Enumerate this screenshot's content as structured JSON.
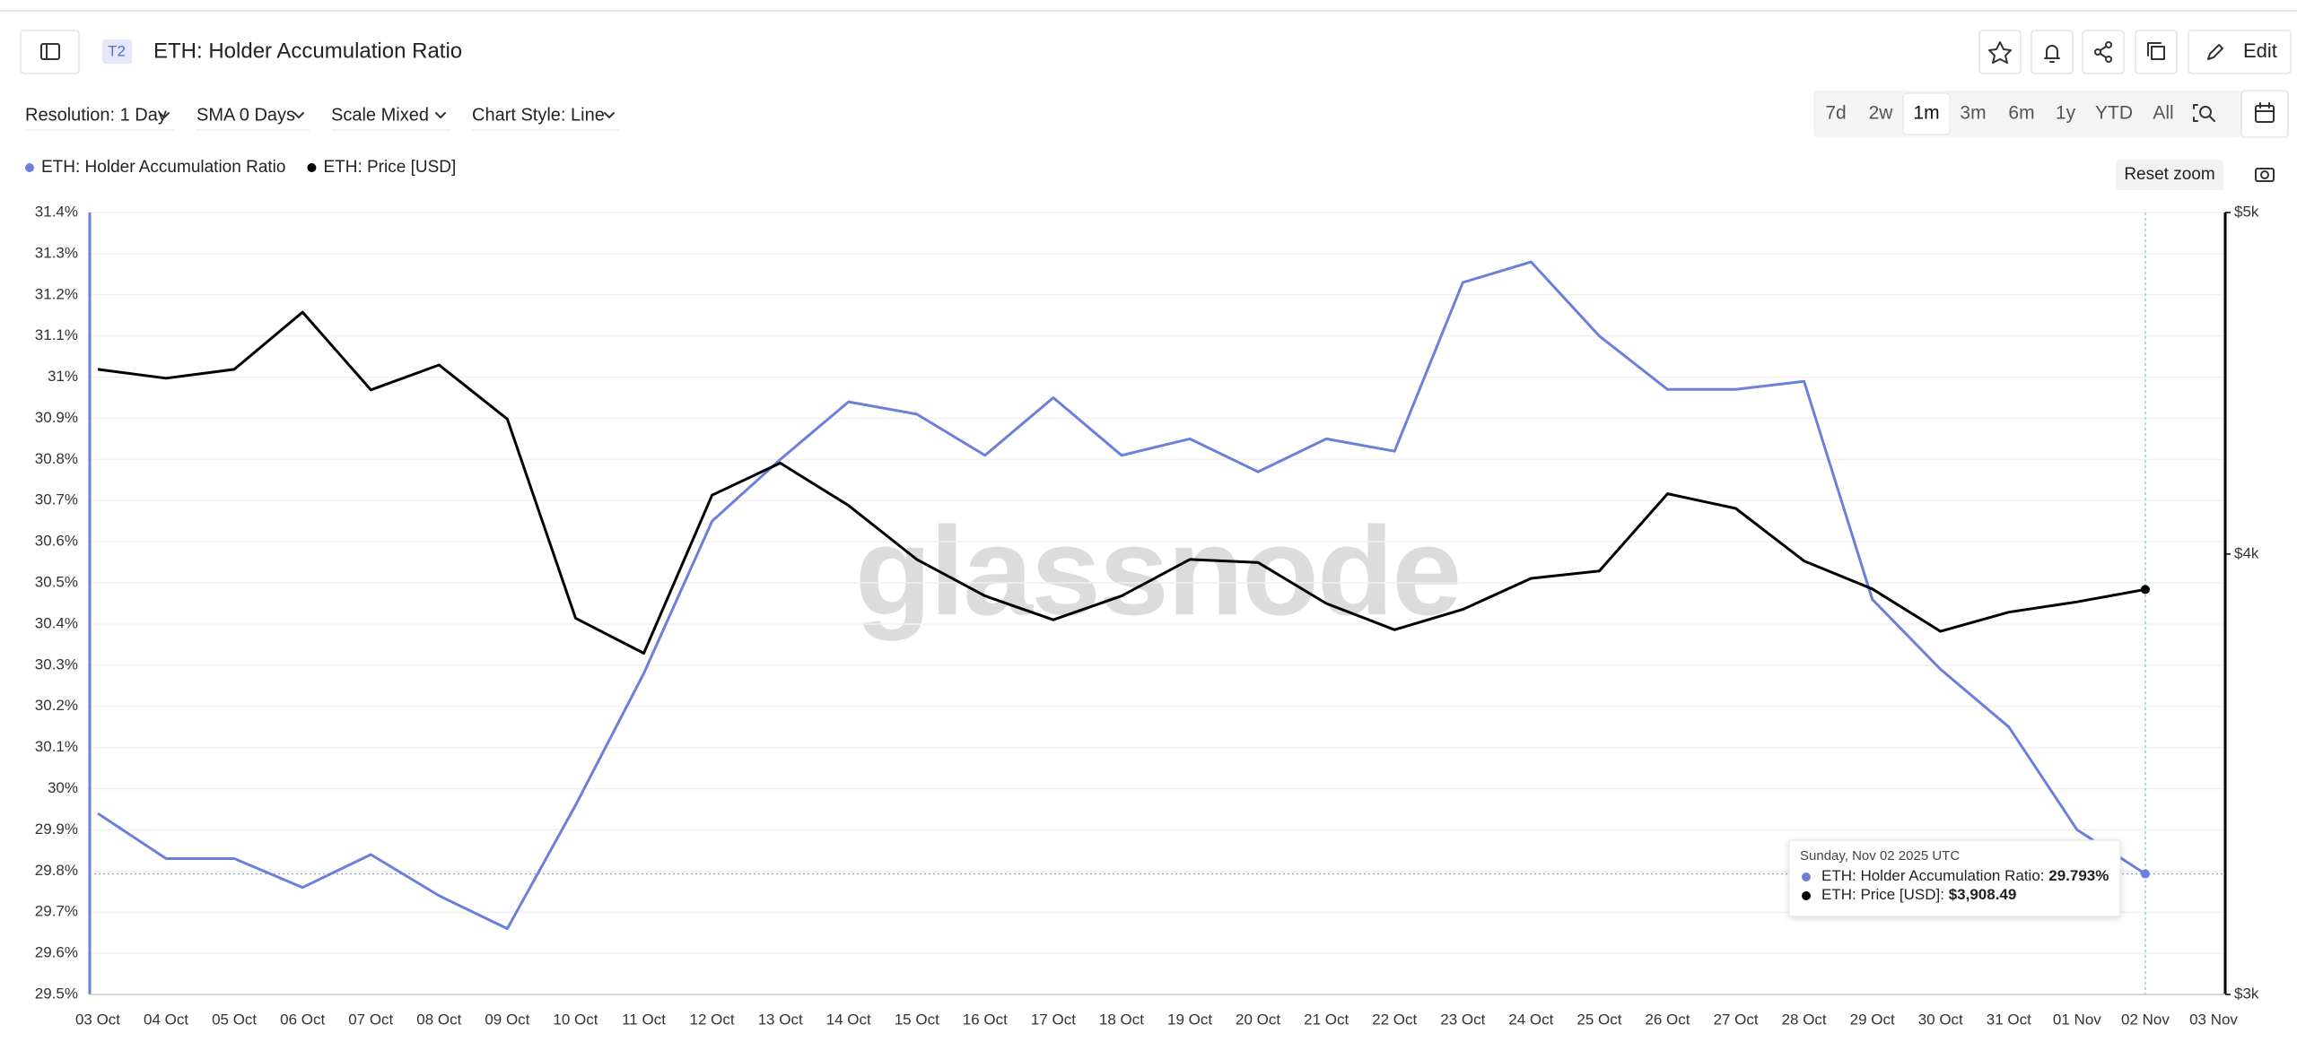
{
  "header": {
    "badge": "T2",
    "edit": "Edit"
  },
  "toolbar": {
    "resolution": "Resolution: 1 Day",
    "sma": "SMA 0 Days",
    "scale": "Scale Mixed",
    "chart_style": "Chart Style: Line",
    "ranges": [
      "7d",
      "2w",
      "1m",
      "3m",
      "6m",
      "1y",
      "YTD",
      "All"
    ],
    "reset_zoom": "Reset zoom"
  },
  "watermark": "glassnode",
  "chart_data": {
    "type": "line",
    "title": "ETH: Holder Accumulation Ratio",
    "categories": [
      "03 Oct",
      "04 Oct",
      "05 Oct",
      "06 Oct",
      "07 Oct",
      "08 Oct",
      "09 Oct",
      "10 Oct",
      "11 Oct",
      "12 Oct",
      "13 Oct",
      "14 Oct",
      "15 Oct",
      "16 Oct",
      "17 Oct",
      "18 Oct",
      "19 Oct",
      "20 Oct",
      "21 Oct",
      "22 Oct",
      "23 Oct",
      "24 Oct",
      "25 Oct",
      "26 Oct",
      "27 Oct",
      "28 Oct",
      "29 Oct",
      "30 Oct",
      "31 Oct",
      "01 Nov",
      "02 Nov",
      "03 Nov"
    ],
    "series": [
      {
        "name": "ETH: Holder Accumulation Ratio",
        "color": "#6b7fdb",
        "values": [
          29.94,
          29.83,
          29.83,
          29.76,
          29.84,
          29.74,
          29.66,
          29.96,
          30.28,
          30.65,
          30.8,
          30.94,
          30.91,
          30.81,
          30.95,
          30.81,
          30.85,
          30.77,
          30.85,
          30.82,
          31.23,
          31.28,
          31.1,
          30.97,
          30.97,
          30.99,
          30.46,
          30.29,
          30.15,
          29.9,
          29.793,
          null
        ]
      },
      {
        "name": "ETH: Price [USD]",
        "color": "#000000",
        "axis": "y2",
        "values": [
          4513,
          4487,
          4513,
          4685,
          4453,
          4526,
          4369,
          3836,
          3749,
          4157,
          4245,
          4129,
          3986,
          3892,
          3832,
          3892,
          3986,
          3978,
          3873,
          3807,
          3858,
          3937,
          3956,
          4161,
          4121,
          3982,
          3910,
          3803,
          3851,
          3877,
          3908.49,
          null
        ]
      }
    ],
    "ylim": [
      29.5,
      31.4
    ],
    "yticks": [
      {
        "value": 29.5,
        "label": "29.5%"
      },
      {
        "value": 29.6,
        "label": "29.6%"
      },
      {
        "value": 29.7,
        "label": "29.7%"
      },
      {
        "value": 29.8,
        "label": "29.8%"
      },
      {
        "value": 29.9,
        "label": "29.9%"
      },
      {
        "value": 30,
        "label": "30%"
      },
      {
        "value": 30.1,
        "label": "30.1%"
      },
      {
        "value": 30.2,
        "label": "30.2%"
      },
      {
        "value": 30.3,
        "label": "30.3%"
      },
      {
        "value": 30.4,
        "label": "30.4%"
      },
      {
        "value": 30.5,
        "label": "30.5%"
      },
      {
        "value": 30.6,
        "label": "30.6%"
      },
      {
        "value": 30.7,
        "label": "30.7%"
      },
      {
        "value": 30.8,
        "label": "30.8%"
      },
      {
        "value": 30.9,
        "label": "30.9%"
      },
      {
        "value": 31,
        "label": "31%"
      },
      {
        "value": 31.1,
        "label": "31.1%"
      },
      {
        "value": 31.2,
        "label": "31.2%"
      },
      {
        "value": 31.3,
        "label": "31.3%"
      },
      {
        "value": 31.4,
        "label": "31.4%"
      }
    ],
    "y2lim": [
      3000,
      5000
    ],
    "y2ticks": [
      {
        "value": 3000,
        "label": "$3k"
      },
      {
        "value": 4000,
        "label": "$4k"
      },
      {
        "value": 5000,
        "label": "$5k"
      }
    ],
    "y2_log": true,
    "grid": true,
    "tooltip": {
      "date": "Sunday, Nov 02 2025 UTC",
      "rows": [
        {
          "name": "ETH: Holder Accumulation Ratio:",
          "value": "29.793%"
        },
        {
          "name": "ETH: Price [USD]:",
          "value": "$3,908.49"
        }
      ]
    }
  }
}
